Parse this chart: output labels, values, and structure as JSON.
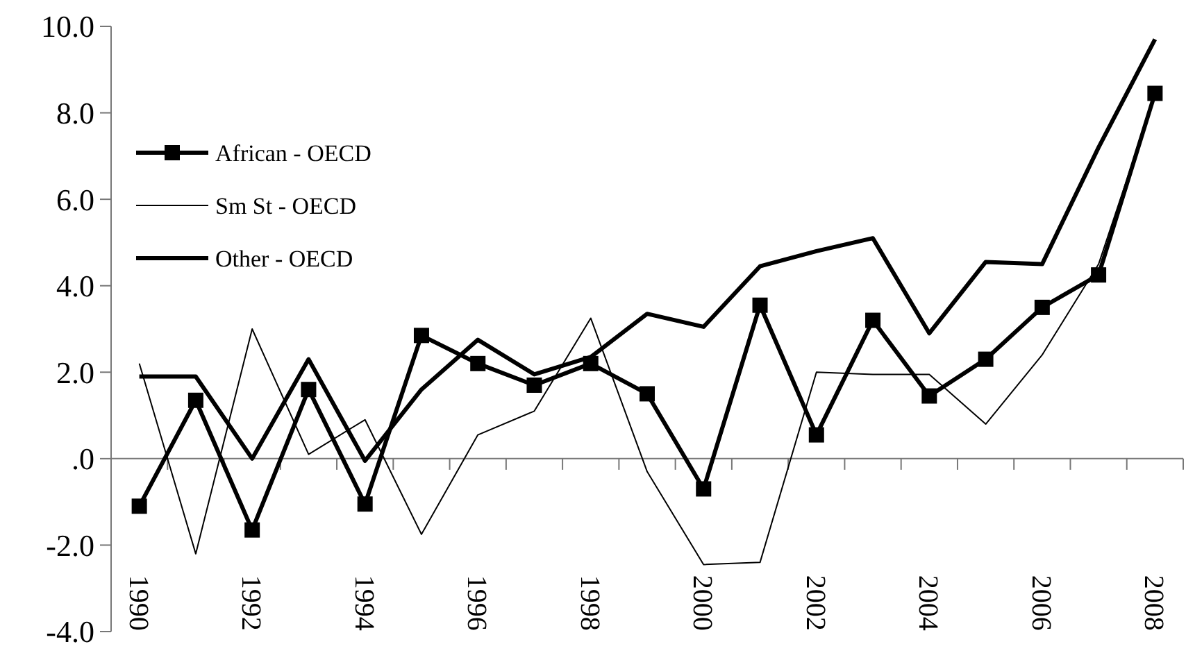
{
  "chart_data": {
    "type": "line",
    "categories": [
      "1990",
      null,
      "1992",
      null,
      "1994",
      null,
      "1996",
      null,
      "1998",
      null,
      "2000",
      null,
      "2002",
      null,
      "2004",
      null,
      "2006",
      null,
      "2008"
    ],
    "series": [
      {
        "name": "African - OECD",
        "color": "#000000",
        "marker": "square",
        "values": [
          -1.1,
          1.35,
          -1.65,
          1.6,
          -1.05,
          2.85,
          2.2,
          1.7,
          2.2,
          1.5,
          -0.7,
          3.55,
          0.55,
          3.2,
          1.45,
          2.3,
          3.5,
          4.25,
          8.45
        ]
      },
      {
        "name": "Sm St - OECD",
        "color": "#000000",
        "marker": "none",
        "values": [
          2.2,
          -2.2,
          3.0,
          0.1,
          0.9,
          -1.75,
          0.55,
          1.1,
          3.25,
          -0.3,
          -2.45,
          -2.4,
          2.0,
          1.95,
          1.95,
          0.8,
          2.4,
          4.5,
          8.4
        ]
      },
      {
        "name": "Other - OECD",
        "color": "#000000",
        "marker": "none",
        "values": [
          1.9,
          1.9,
          0.0,
          2.3,
          -0.05,
          1.6,
          2.75,
          1.95,
          2.35,
          3.35,
          3.05,
          4.45,
          4.8,
          5.1,
          2.9,
          4.55,
          4.5,
          7.2,
          9.7
        ]
      }
    ],
    "ylim": [
      -4,
      10
    ],
    "yticks": [
      {
        "value": -4,
        "label": "-4.0"
      },
      {
        "value": -2,
        "label": "-2.0"
      },
      {
        "value": 0,
        "label": ".0"
      },
      {
        "value": 2,
        "label": "2.0"
      },
      {
        "value": 4,
        "label": "4.0"
      },
      {
        "value": 6,
        "label": "6.0"
      },
      {
        "value": 8,
        "label": "8.0"
      },
      {
        "value": 10,
        "label": "10.0"
      }
    ],
    "legend": "top left"
  }
}
